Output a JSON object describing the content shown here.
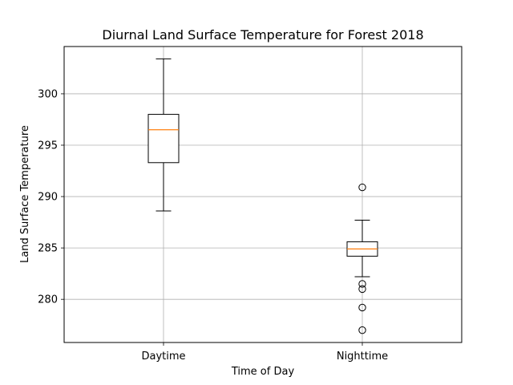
{
  "chart_data": {
    "type": "box",
    "title": "Diurnal Land Surface Temperature for Forest 2018",
    "xlabel": "Time of Day",
    "ylabel": "Land Surface Temperature",
    "ylim": [
      275.8,
      304.6
    ],
    "yticks": [
      280,
      285,
      290,
      295,
      300
    ],
    "grid": true,
    "categories": [
      "Daytime",
      "Nighttime"
    ],
    "boxes": [
      {
        "name": "Daytime",
        "whisker_low": 288.6,
        "q1": 293.3,
        "median": 296.5,
        "q3": 298.0,
        "whisker_high": 303.4,
        "outliers": []
      },
      {
        "name": "Nighttime",
        "whisker_low": 282.2,
        "q1": 284.2,
        "median": 284.9,
        "q3": 285.6,
        "whisker_high": 287.7,
        "outliers": [
          290.9,
          281.5,
          281.0,
          279.2,
          277.0
        ]
      }
    ],
    "colors": {
      "box": "#000000",
      "median": "#ff7f0e",
      "grid": "#b0b0b0"
    }
  }
}
